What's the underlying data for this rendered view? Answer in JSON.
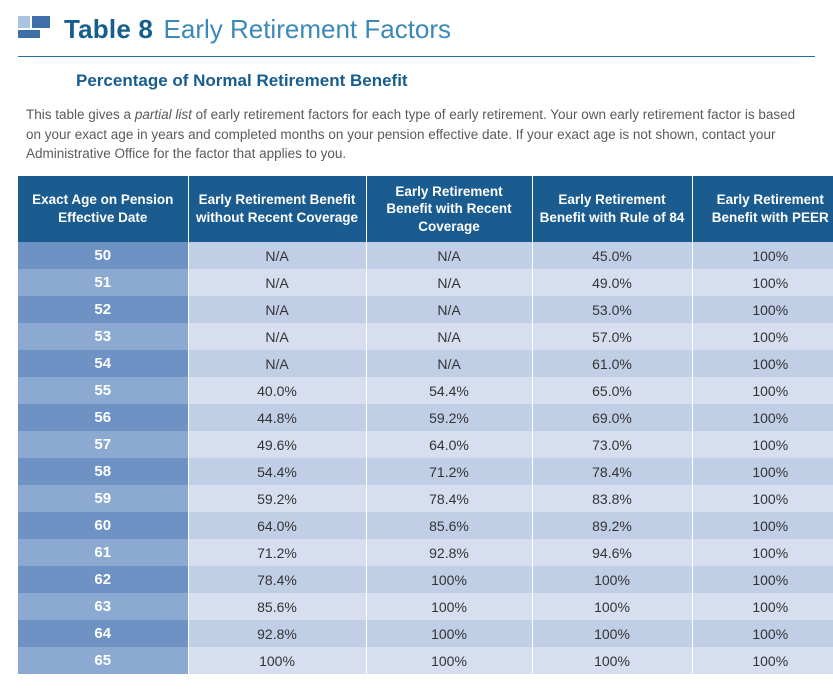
{
  "header": {
    "table_number": "Table 8",
    "title": "Early Retirement Factors",
    "subtitle": "Percentage of Normal Retirement Benefit"
  },
  "intro": {
    "pre": "This table gives a ",
    "italic": "partial list",
    "post": " of early retirement factors for each type of early retirement. Your own early retirement factor is based on your exact age in years and completed months on your pension effective date. If your exact age is not shown, contact your Administrative Office for the factor that applies to you."
  },
  "columns": [
    "Exact Age on Pension Effective Date",
    "Early Retirement Benefit without Recent Coverage",
    "Early Retirement Benefit with Recent Coverage",
    "Early Retirement Benefit with Rule of 84",
    "Early Retirement Benefit with PEER"
  ],
  "rows": [
    {
      "age": "50",
      "c1": "N/A",
      "c2": "N/A",
      "c3": "45.0%",
      "c4": "100%"
    },
    {
      "age": "51",
      "c1": "N/A",
      "c2": "N/A",
      "c3": "49.0%",
      "c4": "100%"
    },
    {
      "age": "52",
      "c1": "N/A",
      "c2": "N/A",
      "c3": "53.0%",
      "c4": "100%"
    },
    {
      "age": "53",
      "c1": "N/A",
      "c2": "N/A",
      "c3": "57.0%",
      "c4": "100%"
    },
    {
      "age": "54",
      "c1": "N/A",
      "c2": "N/A",
      "c3": "61.0%",
      "c4": "100%"
    },
    {
      "age": "55",
      "c1": "40.0%",
      "c2": "54.4%",
      "c3": "65.0%",
      "c4": "100%"
    },
    {
      "age": "56",
      "c1": "44.8%",
      "c2": "59.2%",
      "c3": "69.0%",
      "c4": "100%"
    },
    {
      "age": "57",
      "c1": "49.6%",
      "c2": "64.0%",
      "c3": "73.0%",
      "c4": "100%"
    },
    {
      "age": "58",
      "c1": "54.4%",
      "c2": "71.2%",
      "c3": "78.4%",
      "c4": "100%"
    },
    {
      "age": "59",
      "c1": "59.2%",
      "c2": "78.4%",
      "c3": "83.8%",
      "c4": "100%"
    },
    {
      "age": "60",
      "c1": "64.0%",
      "c2": "85.6%",
      "c3": "89.2%",
      "c4": "100%"
    },
    {
      "age": "61",
      "c1": "71.2%",
      "c2": "92.8%",
      "c3": "94.6%",
      "c4": "100%"
    },
    {
      "age": "62",
      "c1": "78.4%",
      "c2": "100%",
      "c3": "100%",
      "c4": "100%"
    },
    {
      "age": "63",
      "c1": "85.6%",
      "c2": "100%",
      "c3": "100%",
      "c4": "100%"
    },
    {
      "age": "64",
      "c1": "92.8%",
      "c2": "100%",
      "c3": "100%",
      "c4": "100%"
    },
    {
      "age": "65",
      "c1": "100%",
      "c2": "100%",
      "c3": "100%",
      "c4": "100%"
    }
  ],
  "style": {
    "header_bg": "#1a5b90",
    "age_odd_bg": "#6e92c3",
    "age_even_bg": "#8ca9d1",
    "val_odd_bg": "#c0cee6",
    "val_even_bg": "#d6deef",
    "title_color": "#175d8d",
    "title_light_color": "#3b89b8",
    "rule_color": "#1f71a8",
    "intro_color": "#5a5a5a",
    "title_fontsize": 26,
    "subtitle_fontsize": 17,
    "body_fontsize": 14
  }
}
